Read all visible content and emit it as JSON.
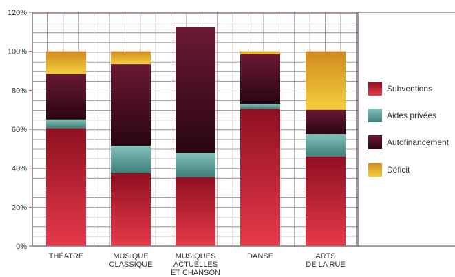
{
  "chart_data": {
    "type": "bar",
    "stacked": true,
    "categories": [
      [
        "THÉATRE"
      ],
      [
        "MUSIQUE",
        "CLASSIQUE"
      ],
      [
        "MUSIQUES",
        "ACTUELLES",
        "ET CHANSON"
      ],
      [
        "DANSE"
      ],
      [
        "ARTS",
        "DE LA RUE"
      ]
    ],
    "series": [
      {
        "name": "Subventions",
        "color": "#cc2a3a",
        "values": [
          60.5,
          37.5,
          35.5,
          70.5,
          46
        ]
      },
      {
        "name": "Aides privées",
        "color": "#5e9e98",
        "values": [
          4.5,
          14,
          12.5,
          2.5,
          11.5
        ]
      },
      {
        "name": "Autofinancement",
        "color": "#4a0f22",
        "values": [
          23.5,
          42,
          64.5,
          25.5,
          12.5
        ]
      },
      {
        "name": "Déficit",
        "color": "#d9a92a",
        "values": [
          11.5,
          6.5,
          0,
          1.5,
          30
        ]
      }
    ],
    "ylim": [
      0,
      120
    ],
    "yticks": [
      "0%",
      "20%",
      "40%",
      "60%",
      "80%",
      "100%",
      "120%"
    ],
    "title": "",
    "xlabel": "",
    "ylabel": "",
    "grid": true,
    "legend": "right"
  }
}
